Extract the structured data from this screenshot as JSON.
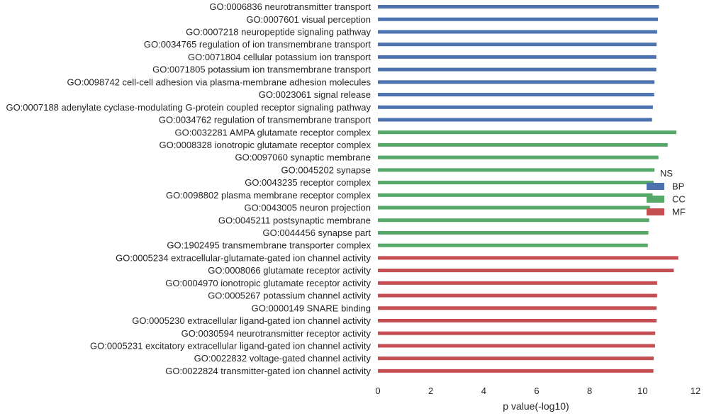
{
  "chart_data": {
    "type": "bar",
    "orientation": "horizontal",
    "xlabel": "p value(-log10)",
    "ylabel": "",
    "title": "",
    "xlim": [
      0,
      12
    ],
    "xticks": [
      "0",
      "2",
      "4",
      "6",
      "8",
      "10",
      "12"
    ],
    "grid": false,
    "legend": {
      "title": "NS",
      "placement": "center-right",
      "entries": [
        {
          "name": "BP",
          "color": "#4c72b0"
        },
        {
          "name": "CC",
          "color": "#55a868"
        },
        {
          "name": "MF",
          "color": "#c44e52"
        }
      ]
    },
    "series": [
      {
        "name": "BP",
        "color": "#4c72b0",
        "categories": [
          "GO:0006836 neurotransmitter transport",
          "GO:0007601 visual perception",
          "GO:0007218 neuropeptide signaling pathway",
          "GO:0034765 regulation of ion transmembrane transport",
          "GO:0071804 cellular potassium ion transport",
          "GO:0071805 potassium ion transmembrane transport",
          "GO:0098742 cell-cell adhesion via plasma-membrane adhesion molecules",
          "GO:0023061 signal release",
          "GO:0007188 adenylate cyclase-modulating G-protein coupled receptor signaling pathway",
          "GO:0034762 regulation of transmembrane transport"
        ],
        "values": [
          10.62,
          10.58,
          10.55,
          10.53,
          10.52,
          10.52,
          10.45,
          10.44,
          10.39,
          10.36
        ]
      },
      {
        "name": "CC",
        "color": "#55a868",
        "categories": [
          "GO:0032281 AMPA glutamate receptor complex",
          "GO:0008328 ionotropic glutamate receptor complex",
          "GO:0097060 synaptic membrane",
          "GO:0045202 synapse",
          "GO:0043235 receptor complex",
          "GO:0098802 plasma membrane receptor complex",
          "GO:0043005 neuron projection",
          "GO:0045211 postsynaptic membrane",
          "GO:0044456 synapse part",
          "GO:1902495 transmembrane transporter complex"
        ],
        "values": [
          11.28,
          10.95,
          10.6,
          10.45,
          10.42,
          10.38,
          10.28,
          10.25,
          10.22,
          10.2
        ]
      },
      {
        "name": "MF",
        "color": "#c44e52",
        "categories": [
          "GO:0005234 extracellular-glutamate-gated ion channel activity",
          "GO:0008066 glutamate receptor activity",
          "GO:0004970 ionotropic glutamate receptor activity",
          "GO:0005267 potassium channel activity",
          "GO:0000149 SNARE binding",
          "GO:0005230 extracellular ligand-gated ion channel activity",
          "GO:0030594 neurotransmitter receptor activity",
          "GO:0005231 excitatory extracellular ligand-gated ion channel activity",
          "GO:0022832 voltage-gated channel activity",
          "GO:0022824 transmitter-gated ion channel activity"
        ],
        "values": [
          11.35,
          11.18,
          10.55,
          10.55,
          10.53,
          10.53,
          10.48,
          10.47,
          10.42,
          10.41
        ]
      }
    ]
  }
}
